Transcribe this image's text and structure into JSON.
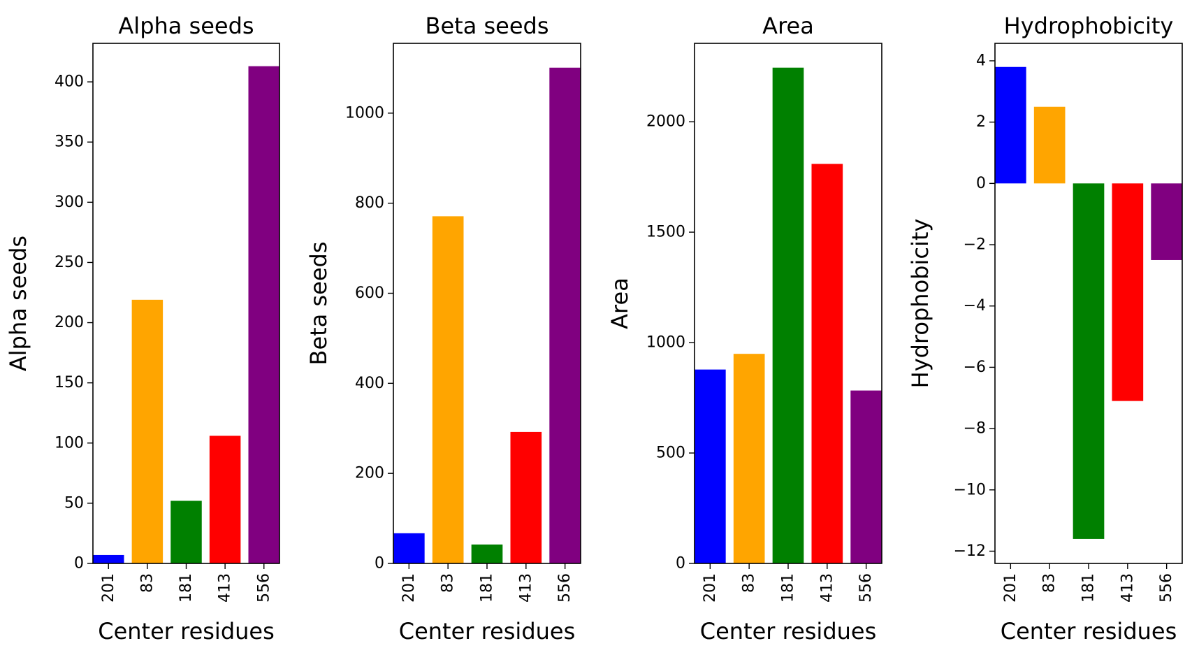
{
  "chart_data": [
    {
      "type": "bar",
      "title": "Alpha seeds",
      "xlabel": "Center residues",
      "ylabel": "Alpha seeds",
      "categories": [
        "201",
        "83",
        "181",
        "413",
        "556"
      ],
      "values": [
        7,
        219,
        52,
        106,
        413
      ],
      "colors": [
        "#0000ff",
        "#ffa500",
        "#008000",
        "#ff0000",
        "#800080"
      ],
      "ylim": [
        0,
        432
      ],
      "yticks": [
        0,
        50,
        100,
        150,
        200,
        250,
        300,
        350,
        400
      ],
      "yticklabels": [
        "0",
        "50",
        "100",
        "150",
        "200",
        "250",
        "300",
        "350",
        "400"
      ],
      "grid": false
    },
    {
      "type": "bar",
      "title": "Beta seeds",
      "xlabel": "Center residues",
      "ylabel": "Beta seeds",
      "categories": [
        "201",
        "83",
        "181",
        "413",
        "556"
      ],
      "values": [
        67,
        771,
        42,
        292,
        1101
      ],
      "colors": [
        "#0000ff",
        "#ffa500",
        "#008000",
        "#ff0000",
        "#800080"
      ],
      "ylim": [
        0,
        1155
      ],
      "yticks": [
        0,
        200,
        400,
        600,
        800,
        1000
      ],
      "yticklabels": [
        "0",
        "200",
        "400",
        "600",
        "800",
        "1000"
      ],
      "grid": false
    },
    {
      "type": "bar",
      "title": "Area",
      "xlabel": "Center residues",
      "ylabel": "Area",
      "categories": [
        "201",
        "83",
        "181",
        "413",
        "556"
      ],
      "values": [
        878,
        949,
        2245,
        1809,
        783
      ],
      "colors": [
        "#0000ff",
        "#ffa500",
        "#008000",
        "#ff0000",
        "#800080"
      ],
      "ylim": [
        0,
        2355
      ],
      "yticks": [
        0,
        500,
        1000,
        1500,
        2000
      ],
      "yticklabels": [
        "0",
        "500",
        "1000",
        "1500",
        "2000"
      ],
      "grid": false
    },
    {
      "type": "bar",
      "title": "Hydrophobicity",
      "xlabel": "Center residues",
      "ylabel": "Hydrophobicity",
      "categories": [
        "201",
        "83",
        "181",
        "413",
        "556"
      ],
      "values": [
        3.8,
        2.5,
        -11.6,
        -7.1,
        -2.5
      ],
      "colors": [
        "#0000ff",
        "#ffa500",
        "#008000",
        "#ff0000",
        "#800080"
      ],
      "ylim": [
        -12.4,
        4.57
      ],
      "yticks": [
        -12,
        -10,
        -8,
        -6,
        -4,
        -2,
        0,
        2,
        4
      ],
      "yticklabels": [
        "−12",
        "−10",
        "−8",
        "−6",
        "−4",
        "−2",
        "0",
        "2",
        "4"
      ],
      "grid": false
    }
  ]
}
